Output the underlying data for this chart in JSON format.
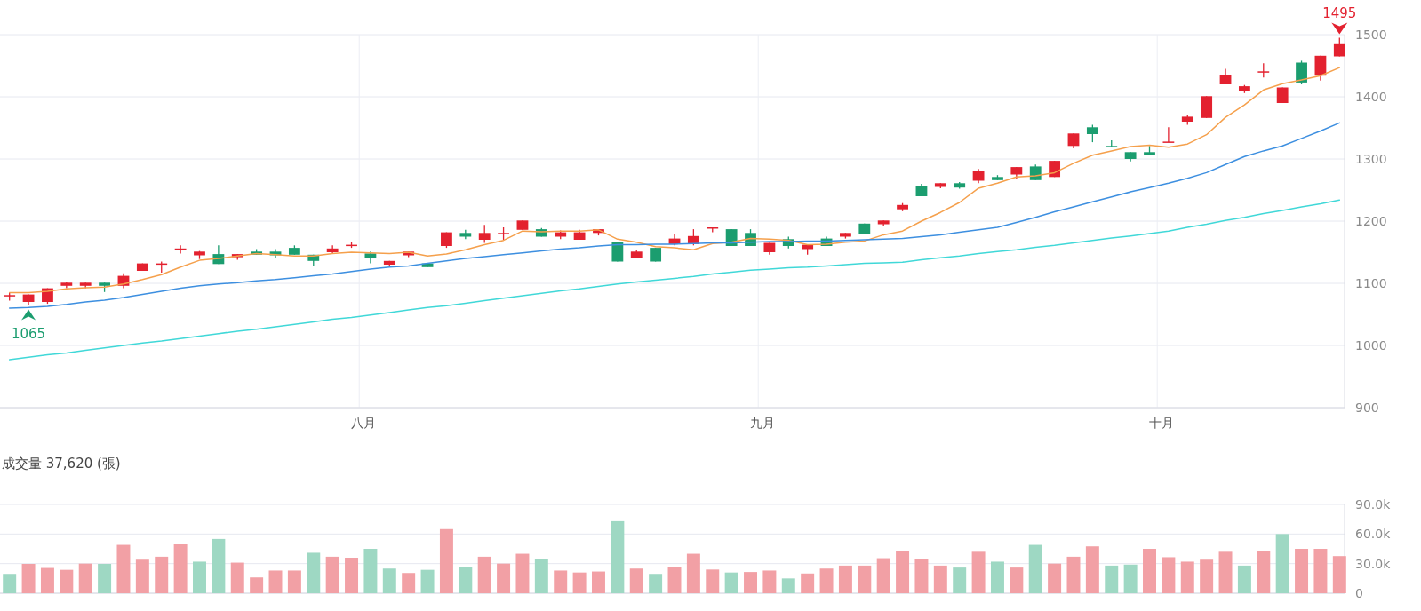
{
  "chart_data": [
    {
      "type": "candlestick",
      "categories": [
        null,
        null,
        null,
        null,
        null,
        null,
        null,
        null,
        null,
        null,
        null,
        null,
        null,
        null,
        null,
        null,
        null,
        null,
        null,
        "八月",
        null,
        null,
        null,
        null,
        null,
        null,
        null,
        null,
        null,
        null,
        null,
        null,
        null,
        null,
        null,
        null,
        null,
        null,
        null,
        null,
        "九月",
        null,
        null,
        null,
        null,
        null,
        null,
        null,
        null,
        null,
        null,
        null,
        null,
        null,
        null,
        null,
        null,
        null,
        null,
        null,
        null,
        "十月",
        null,
        null,
        null,
        null,
        null,
        null,
        null,
        null,
        null
      ],
      "ohlc": [
        [
          1080,
          1085,
          1072,
          1081
        ],
        [
          1070,
          1082,
          1065,
          1082
        ],
        [
          1070,
          1092,
          1067,
          1092
        ],
        [
          1096,
          1102,
          1092,
          1101
        ],
        [
          1096,
          1101,
          1092,
          1101
        ],
        [
          1101,
          1101,
          1086,
          1096
        ],
        [
          1096,
          1116,
          1092,
          1112
        ],
        [
          1120,
          1132,
          1120,
          1132
        ],
        [
          1131,
          1135,
          1117,
          1132
        ],
        [
          1155,
          1161,
          1148,
          1156
        ],
        [
          1145,
          1152,
          1139,
          1151
        ],
        [
          1147,
          1161,
          1131,
          1131
        ],
        [
          1142,
          1147,
          1138,
          1147
        ],
        [
          1151,
          1155,
          1146,
          1146
        ],
        [
          1151,
          1155,
          1141,
          1145
        ],
        [
          1157,
          1161,
          1146,
          1146
        ],
        [
          1146,
          1146,
          1127,
          1136
        ],
        [
          1150,
          1161,
          1147,
          1156
        ],
        [
          1161,
          1166,
          1157,
          1162
        ],
        [
          1148,
          1151,
          1132,
          1141
        ],
        [
          1130,
          1136,
          1127,
          1136
        ],
        [
          1145,
          1151,
          1142,
          1151
        ],
        [
          1132,
          1132,
          1126,
          1126
        ],
        [
          1160,
          1182,
          1157,
          1182
        ],
        [
          1181,
          1186,
          1171,
          1175
        ],
        [
          1170,
          1194,
          1165,
          1181
        ],
        [
          1180,
          1190,
          1170,
          1181
        ],
        [
          1186,
          1201,
          1186,
          1201
        ],
        [
          1187,
          1189,
          1175,
          1175
        ],
        [
          1175,
          1185,
          1171,
          1182
        ],
        [
          1170,
          1186,
          1170,
          1182
        ],
        [
          1181,
          1187,
          1177,
          1187
        ],
        [
          1166,
          1166,
          1135,
          1135
        ],
        [
          1141,
          1153,
          1141,
          1151
        ],
        [
          1157,
          1157,
          1135,
          1135
        ],
        [
          1163,
          1179,
          1161,
          1172
        ],
        [
          1163,
          1187,
          1161,
          1176
        ],
        [
          1189,
          1190,
          1182,
          1190
        ],
        [
          1187,
          1187,
          1160,
          1160
        ],
        [
          1181,
          1187,
          1160,
          1160
        ],
        [
          1150,
          1165,
          1146,
          1165
        ],
        [
          1171,
          1175,
          1156,
          1160
        ],
        [
          1155,
          1162,
          1146,
          1162
        ],
        [
          1172,
          1175,
          1160,
          1160
        ],
        [
          1175,
          1181,
          1172,
          1181
        ],
        [
          1196,
          1196,
          1180,
          1180
        ],
        [
          1195,
          1201,
          1192,
          1201
        ],
        [
          1219,
          1229,
          1216,
          1226
        ],
        [
          1257,
          1260,
          1240,
          1240
        ],
        [
          1255,
          1261,
          1253,
          1261
        ],
        [
          1261,
          1263,
          1252,
          1254
        ],
        [
          1265,
          1284,
          1261,
          1281
        ],
        [
          1271,
          1274,
          1266,
          1266
        ],
        [
          1275,
          1287,
          1267,
          1287
        ],
        [
          1288,
          1291,
          1266,
          1266
        ],
        [
          1271,
          1297,
          1271,
          1297
        ],
        [
          1321,
          1341,
          1317,
          1341
        ],
        [
          1351,
          1355,
          1327,
          1340
        ],
        [
          1321,
          1330,
          1320,
          1320
        ],
        [
          1311,
          1311,
          1296,
          1300
        ],
        [
          1311,
          1321,
          1306,
          1306
        ],
        [
          1327,
          1351,
          1327,
          1328
        ],
        [
          1360,
          1371,
          1355,
          1368
        ],
        [
          1366,
          1401,
          1366,
          1401
        ],
        [
          1420,
          1445,
          1420,
          1435
        ],
        [
          1410,
          1419,
          1406,
          1417
        ],
        [
          1440,
          1454,
          1431,
          1441
        ],
        [
          1390,
          1415,
          1390,
          1415
        ],
        [
          1455,
          1458,
          1420,
          1423
        ],
        [
          1434,
          1466,
          1426,
          1466
        ],
        [
          1465,
          1495,
          1465,
          1486
        ]
      ],
      "colors": [
        "#e3212f",
        "#e3212f",
        "#e3212f",
        "#e3212f",
        "#e3212f",
        "#1b9d6f",
        "#e3212f",
        "#e3212f",
        "#e3212f",
        "#e3212f",
        "#e3212f",
        "#1b9d6f",
        "#e3212f",
        "#1b9d6f",
        "#1b9d6f",
        "#1b9d6f",
        "#1b9d6f",
        "#e3212f",
        "#e3212f",
        "#1b9d6f",
        "#e3212f",
        "#e3212f",
        "#1b9d6f",
        "#e3212f",
        "#1b9d6f",
        "#e3212f",
        "#e3212f",
        "#e3212f",
        "#1b9d6f",
        "#e3212f",
        "#e3212f",
        "#e3212f",
        "#1b9d6f",
        "#e3212f",
        "#1b9d6f",
        "#e3212f",
        "#e3212f",
        "#e3212f",
        "#1b9d6f",
        "#1b9d6f",
        "#e3212f",
        "#1b9d6f",
        "#e3212f",
        "#1b9d6f",
        "#e3212f",
        "#1b9d6f",
        "#e3212f",
        "#e3212f",
        "#1b9d6f",
        "#e3212f",
        "#1b9d6f",
        "#e3212f",
        "#1b9d6f",
        "#e3212f",
        "#1b9d6f",
        "#e3212f",
        "#e3212f",
        "#1b9d6f",
        "#1b9d6f",
        "#1b9d6f",
        "#1b9d6f",
        "#e3212f",
        "#e3212f",
        "#e3212f",
        "#e3212f",
        "#e3212f",
        "#e3212f",
        "#e3212f",
        "#1b9d6f",
        "#e3212f",
        "#e3212f"
      ],
      "series": [
        {
          "type": "line",
          "color": "#f5a04c",
          "values": [
            1085,
            1085,
            1087,
            1091,
            1093,
            1094,
            1099,
            1106,
            1114,
            1126,
            1137,
            1140,
            1144,
            1148,
            1146,
            1144,
            1144,
            1148,
            1150,
            1149,
            1148,
            1150,
            1144,
            1147,
            1154,
            1162,
            1169,
            1184,
            1183,
            1184,
            1184,
            1186,
            1171,
            1166,
            1159,
            1157,
            1154,
            1164,
            1166,
            1172,
            1171,
            1169,
            1162,
            1163,
            1166,
            1168,
            1178,
            1184,
            1200,
            1214,
            1230,
            1253,
            1261,
            1271,
            1273,
            1278,
            1293,
            1306,
            1313,
            1320,
            1322,
            1319,
            1324,
            1339,
            1367,
            1387,
            1411,
            1421,
            1427,
            1434,
            1447
          ]
        },
        {
          "type": "line",
          "color": "#3d8fe0",
          "values": [
            1060,
            1061,
            1063,
            1066,
            1070,
            1073,
            1077,
            1082,
            1087,
            1092,
            1096,
            1099,
            1101,
            1104,
            1106,
            1109,
            1112,
            1115,
            1119,
            1123,
            1126,
            1128,
            1132,
            1136,
            1140,
            1143,
            1146,
            1149,
            1152,
            1155,
            1157,
            1160,
            1162,
            1162,
            1163,
            1163,
            1164,
            1165,
            1165,
            1166,
            1167,
            1167,
            1168,
            1168,
            1169,
            1170,
            1171,
            1172,
            1175,
            1178,
            1182,
            1186,
            1190,
            1198,
            1206,
            1215,
            1223,
            1231,
            1239,
            1247,
            1254,
            1261,
            1269,
            1278,
            1291,
            1304,
            1313,
            1321,
            1333,
            1345,
            1358
          ]
        },
        {
          "type": "line",
          "color": "#40d8d8",
          "values": [
            977,
            981,
            985,
            988,
            992,
            996,
            1000,
            1004,
            1007,
            1011,
            1015,
            1019,
            1023,
            1026,
            1030,
            1034,
            1038,
            1042,
            1045,
            1049,
            1053,
            1057,
            1061,
            1064,
            1068,
            1072,
            1076,
            1080,
            1084,
            1088,
            1091,
            1095,
            1099,
            1102,
            1105,
            1108,
            1111,
            1115,
            1118,
            1121,
            1123,
            1125,
            1126,
            1128,
            1130,
            1132,
            1133,
            1134,
            1138,
            1141,
            1144,
            1148,
            1151,
            1154,
            1158,
            1161,
            1165,
            1169,
            1173,
            1176,
            1180,
            1184,
            1190,
            1195,
            1201,
            1206,
            1212,
            1217,
            1223,
            1228,
            1234
          ]
        }
      ],
      "ylim": [
        900,
        1500
      ],
      "yticks": [
        900,
        1000,
        1100,
        1200,
        1300,
        1400,
        1500
      ],
      "grid": true,
      "annotations": [
        {
          "text": "1065",
          "y": 1065
        },
        {
          "text": "1495",
          "y": 1495
        }
      ]
    },
    {
      "type": "bar",
      "title": "成交量 37,620 (張)",
      "categories": [
        null,
        null,
        null,
        null,
        null,
        null,
        null,
        null,
        null,
        null,
        null,
        null,
        null,
        null,
        null,
        null,
        null,
        null,
        null,
        null,
        null,
        null,
        null,
        null,
        null,
        null,
        null,
        null,
        null,
        null,
        null,
        null,
        null,
        null,
        null,
        null,
        null,
        null,
        null,
        null,
        null,
        null,
        null,
        null,
        null,
        null,
        null,
        null,
        null,
        null,
        null,
        null,
        null,
        null,
        null,
        null,
        null,
        null,
        null,
        null,
        null,
        null,
        null,
        null,
        null,
        null,
        null,
        null,
        null,
        null,
        null
      ],
      "values": [
        19600,
        29700,
        25600,
        23700,
        30000,
        29700,
        49000,
        34000,
        37000,
        50000,
        32000,
        55000,
        31000,
        16000,
        23000,
        23000,
        41000,
        37000,
        36000,
        45000,
        25000,
        20500,
        23700,
        65000,
        27000,
        37000,
        30000,
        40000,
        35000,
        23000,
        21000,
        22000,
        73000,
        25000,
        19600,
        27000,
        40000,
        24000,
        21000,
        21500,
        23000,
        15000,
        20000,
        25000,
        28000,
        28000,
        35500,
        43000,
        34500,
        28000,
        26000,
        42000,
        32000,
        26000,
        49000,
        30000,
        37000,
        47500,
        28000,
        29000,
        45000,
        36500,
        32000,
        34000,
        42000,
        28000,
        42500,
        60000,
        45000,
        45000,
        37620
      ],
      "colors": [
        "#9ed8c3",
        "#f2a0a5",
        "#f2a0a5",
        "#f2a0a5",
        "#f2a0a5",
        "#9ed8c3",
        "#f2a0a5",
        "#f2a0a5",
        "#f2a0a5",
        "#f2a0a5",
        "#9ed8c3",
        "#9ed8c3",
        "#f2a0a5",
        "#f2a0a5",
        "#f2a0a5",
        "#f2a0a5",
        "#9ed8c3",
        "#f2a0a5",
        "#f2a0a5",
        "#9ed8c3",
        "#9ed8c3",
        "#f2a0a5",
        "#9ed8c3",
        "#f2a0a5",
        "#9ed8c3",
        "#f2a0a5",
        "#f2a0a5",
        "#f2a0a5",
        "#9ed8c3",
        "#f2a0a5",
        "#f2a0a5",
        "#f2a0a5",
        "#9ed8c3",
        "#f2a0a5",
        "#9ed8c3",
        "#f2a0a5",
        "#f2a0a5",
        "#f2a0a5",
        "#9ed8c3",
        "#f2a0a5",
        "#f2a0a5",
        "#9ed8c3",
        "#f2a0a5",
        "#f2a0a5",
        "#f2a0a5",
        "#f2a0a5",
        "#f2a0a5",
        "#f2a0a5",
        "#f2a0a5",
        "#f2a0a5",
        "#9ed8c3",
        "#f2a0a5",
        "#9ed8c3",
        "#f2a0a5",
        "#9ed8c3",
        "#f2a0a5",
        "#f2a0a5",
        "#f2a0a5",
        "#9ed8c3",
        "#9ed8c3",
        "#f2a0a5",
        "#f2a0a5",
        "#f2a0a5",
        "#f2a0a5",
        "#f2a0a5",
        "#9ed8c3",
        "#f2a0a5",
        "#9ed8c3",
        "#f2a0a5",
        "#f2a0a5",
        "#f2a0a5"
      ],
      "ylim": [
        0,
        90000
      ],
      "yticks": [
        0,
        {
          "value": 30000,
          "label": "30.0k"
        },
        {
          "value": 60000,
          "label": "60.0k"
        },
        {
          "value": 90000,
          "label": "90.0k"
        }
      ],
      "grid": "y",
      "tick_labels": "y"
    }
  ]
}
